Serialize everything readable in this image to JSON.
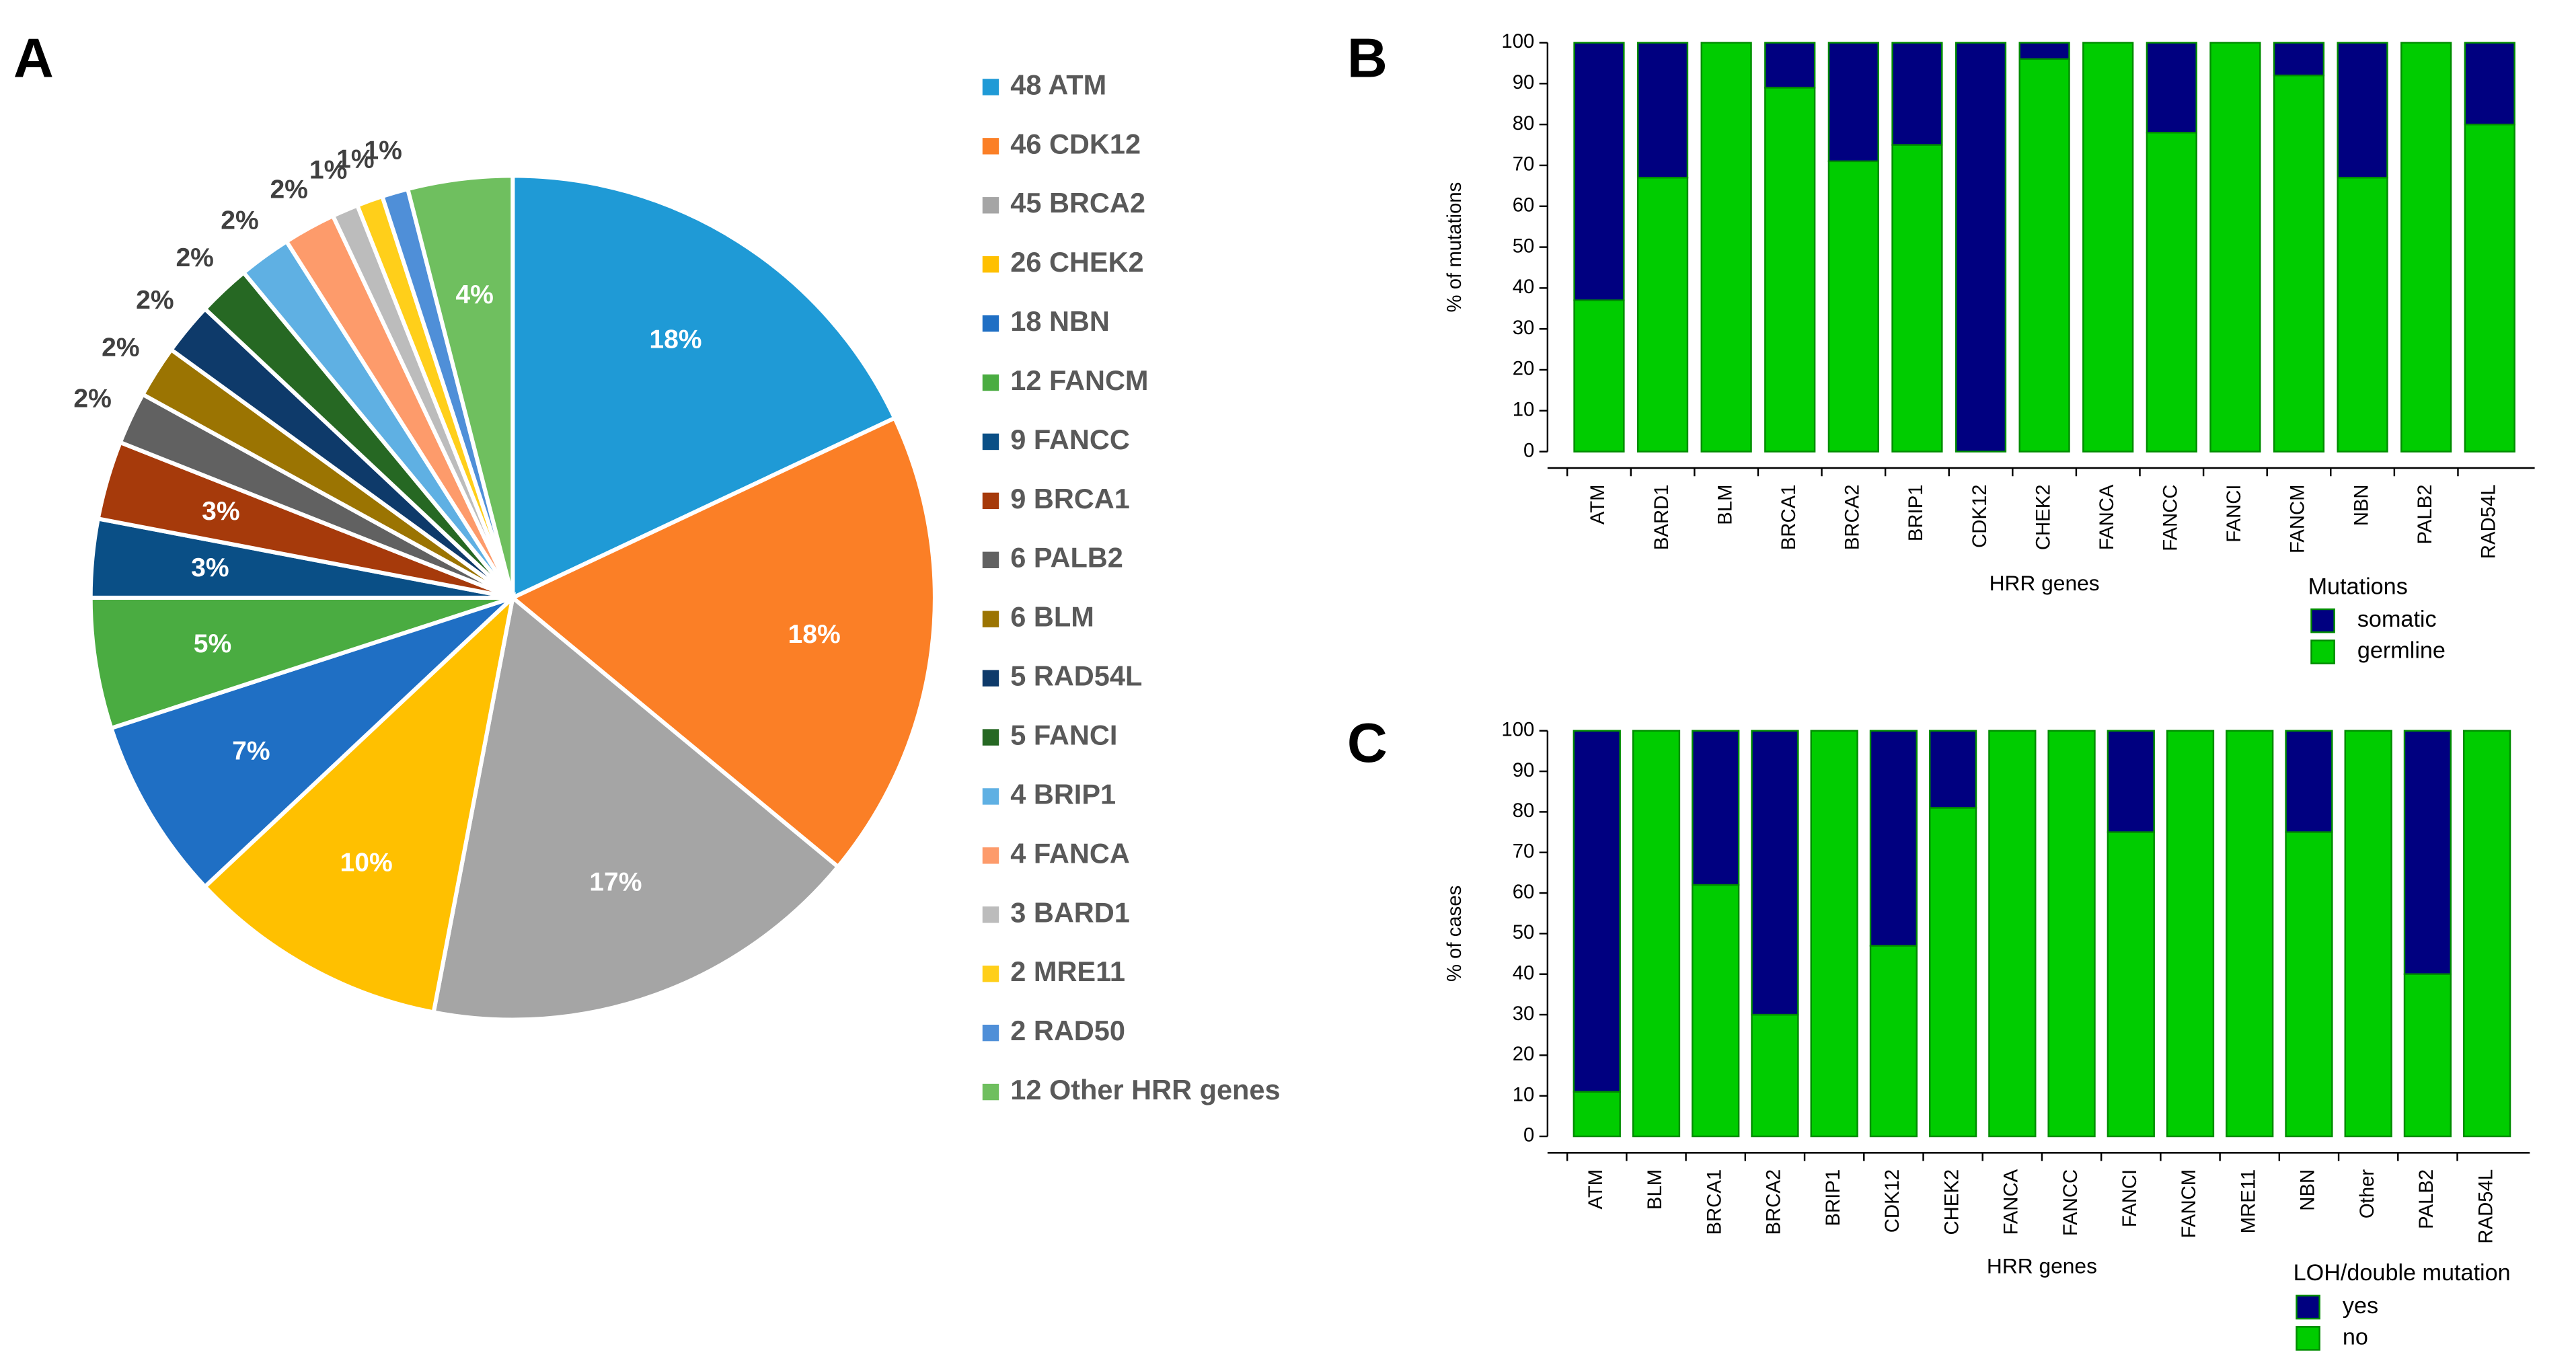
{
  "chart_data": [
    {
      "type": "pie",
      "panel": "A",
      "categories": [
        "48 ATM",
        "46 CDK12",
        "45 BRCA2",
        "26 CHEK2",
        "18 NBN",
        "12 FANCM",
        "9 FANCC",
        "9 BRCA1",
        "6 PALB2",
        "6 BLM",
        "5 RAD54L",
        "5 FANCI",
        "4 BRIP1",
        "4 FANCA",
        "3 BARD1",
        "2 MRE11",
        "2 RAD50",
        "12 Other HRR genes"
      ],
      "values": [
        18,
        18,
        17,
        10,
        7,
        5,
        3,
        3,
        2,
        2,
        2,
        2,
        2,
        2,
        1,
        1,
        1,
        4
      ],
      "value_labels": [
        "18%",
        "18%",
        "17%",
        "10%",
        "7%",
        "5%",
        "3%",
        "3%",
        "2%",
        "2%",
        "2%",
        "2%",
        "2%",
        "2%",
        "1%",
        "1%",
        "1%",
        "4%"
      ],
      "colors": [
        "#1f9ad6",
        "#fb7f26",
        "#a5a5a5",
        "#ffc000",
        "#1f6fc4",
        "#4aac41",
        "#0a4f86",
        "#a63a0b",
        "#616161",
        "#9b7402",
        "#0e3a6a",
        "#266823",
        "#5fb0e3",
        "#fd9b6b",
        "#bcbcbc",
        "#ffcf1a",
        "#4f8fd8",
        "#6fbf5f"
      ]
    },
    {
      "type": "stacked_bar",
      "panel": "B",
      "categories": [
        "ATM",
        "BARD1",
        "BLM",
        "BRCA1",
        "BRCA2",
        "BRIP1",
        "CDK12",
        "CHEK2",
        "FANCA",
        "FANCC",
        "FANCI",
        "FANCM",
        "NBN",
        "PALB2",
        "RAD54L"
      ],
      "series": [
        {
          "name": "somatic",
          "color": "#000080",
          "values": [
            63,
            33,
            0,
            11,
            29,
            25,
            100,
            4,
            0,
            22,
            0,
            8,
            33,
            0,
            20
          ]
        },
        {
          "name": "germline",
          "color": "#00cc00",
          "values": [
            37,
            67,
            100,
            89,
            71,
            75,
            0,
            96,
            100,
            78,
            100,
            92,
            67,
            100,
            80
          ]
        }
      ],
      "ylim": [
        0,
        100
      ],
      "yticks": [
        0,
        10,
        20,
        30,
        40,
        50,
        60,
        70,
        80,
        90,
        100
      ],
      "y_label": "% of mutations",
      "x_label": "HRR genes",
      "legend_title": "Mutations"
    },
    {
      "type": "stacked_bar",
      "panel": "C",
      "categories": [
        "ATM",
        "BLM",
        "BRCA1",
        "BRCA2",
        "BRIP1",
        "CDK12",
        "CHEK2",
        "FANCA",
        "FANCC",
        "FANCI",
        "FANCM",
        "MRE11",
        "NBN",
        "Other",
        "PALB2",
        "RAD54L"
      ],
      "series": [
        {
          "name": "yes",
          "color": "#000080",
          "values": [
            89,
            0,
            38,
            70,
            0,
            53,
            19,
            0,
            0,
            25,
            0,
            0,
            25,
            0,
            60,
            0
          ]
        },
        {
          "name": "no",
          "color": "#00cc00",
          "values": [
            11,
            100,
            62,
            30,
            100,
            47,
            81,
            100,
            100,
            75,
            100,
            100,
            75,
            100,
            40,
            100
          ]
        }
      ],
      "ylim": [
        0,
        100
      ],
      "yticks": [
        0,
        10,
        20,
        30,
        40,
        50,
        60,
        70,
        80,
        90,
        100
      ],
      "y_label": "% of cases",
      "x_label": "HRR genes",
      "legend_title": "LOH/double mutation"
    }
  ]
}
